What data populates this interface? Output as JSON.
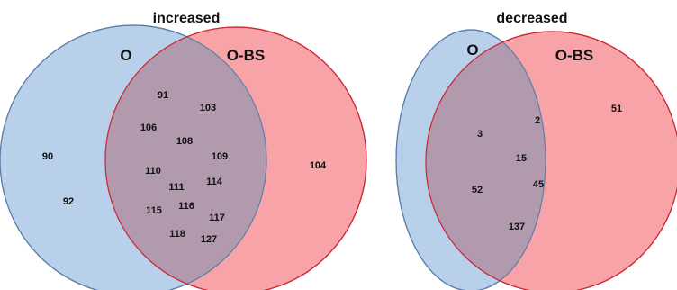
{
  "colors": {
    "blue_fill": "#b8d0ea",
    "blue_stroke": "#5b7fa8",
    "red_fill": "#f7a3a7",
    "red_stroke": "#cc2a36",
    "overlap_fill": "#b29aae"
  },
  "left": {
    "title": "increased",
    "set_a": "O",
    "set_b": "O-BS",
    "only_a": [
      "90",
      "92"
    ],
    "both": [
      "91",
      "103",
      "106",
      "108",
      "109",
      "110",
      "111",
      "114",
      "115",
      "116",
      "117",
      "118",
      "127"
    ],
    "only_b": [
      "104"
    ]
  },
  "right": {
    "title": "decreased",
    "set_a": "O",
    "set_b": "O-BS",
    "only_a": [],
    "both": [
      "2",
      "3",
      "15",
      "45",
      "52",
      "137"
    ],
    "only_b": [
      "51"
    ]
  }
}
